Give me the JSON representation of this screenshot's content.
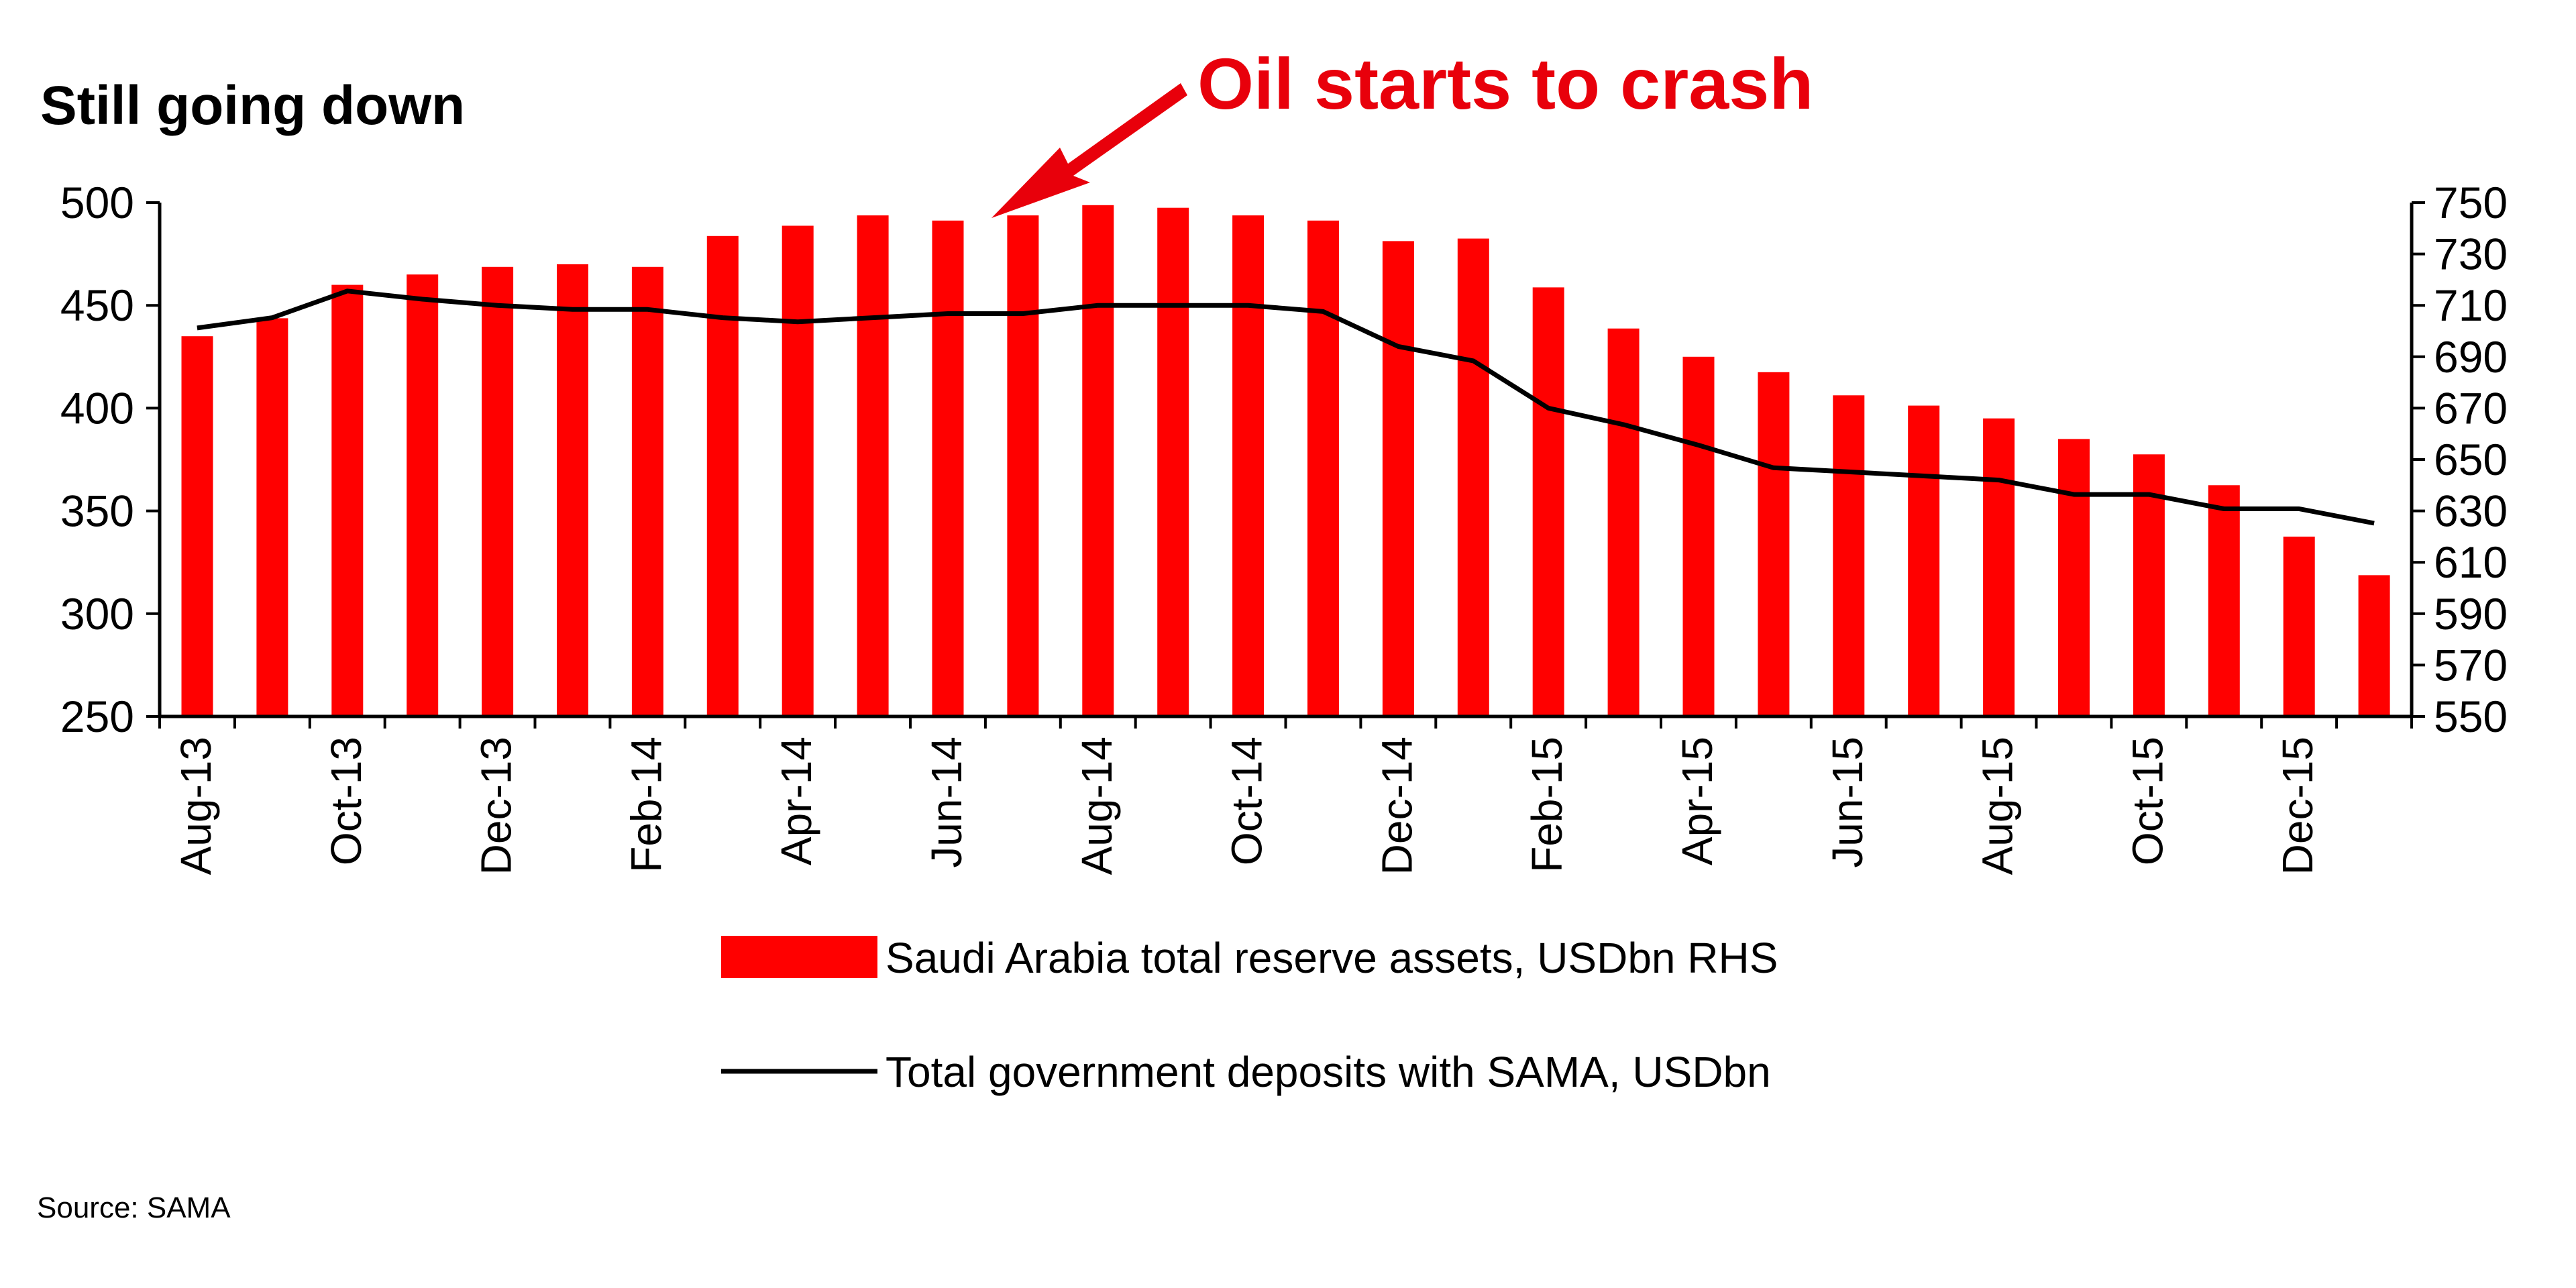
{
  "title": "Still going down",
  "annotation": "Oil starts to crash",
  "source": "Source: SAMA",
  "colors": {
    "bar": "#ff0000",
    "line": "#000000",
    "annotation": "#e8000b"
  },
  "chart_data": {
    "type": "bar+line",
    "x": [
      "Aug-13",
      "Sep-13",
      "Oct-13",
      "Nov-13",
      "Dec-13",
      "Jan-14",
      "Feb-14",
      "Mar-14",
      "Apr-14",
      "May-14",
      "Jun-14",
      "Jul-14",
      "Aug-14",
      "Sep-14",
      "Oct-14",
      "Nov-14",
      "Dec-14",
      "Jan-15",
      "Feb-15",
      "Mar-15",
      "Apr-15",
      "May-15",
      "Jun-15",
      "Jul-15",
      "Aug-15",
      "Sep-15",
      "Oct-15",
      "Nov-15",
      "Dec-15",
      "Jan-16"
    ],
    "x_tick_labels": [
      "Aug-13",
      "Oct-13",
      "Dec-13",
      "Feb-14",
      "Apr-14",
      "Jun-14",
      "Aug-14",
      "Oct-14",
      "Dec-14",
      "Feb-15",
      "Apr-15",
      "Jun-15",
      "Aug-15",
      "Oct-15",
      "Dec-15"
    ],
    "series": [
      {
        "name": "Saudi Arabia total reserve assets, USDbn RHS",
        "type": "bar",
        "axis": "right",
        "values": [
          698,
          705,
          718,
          722,
          725,
          726,
          725,
          737,
          741,
          745,
          743,
          745,
          749,
          748,
          745,
          743,
          735,
          736,
          717,
          701,
          690,
          684,
          675,
          671,
          666,
          658,
          652,
          640,
          620,
          605
        ]
      },
      {
        "name": "Total government deposits with SAMA, USDbn",
        "type": "line",
        "axis": "left",
        "values": [
          439,
          444,
          457,
          453,
          450,
          448,
          448,
          444,
          442,
          444,
          446,
          446,
          450,
          450,
          450,
          447,
          430,
          423,
          400,
          392,
          382,
          371,
          369,
          367,
          365,
          358,
          358,
          351,
          351,
          344
        ]
      }
    ],
    "left_axis": {
      "ylim": [
        250,
        500
      ],
      "ticks": [
        500,
        450,
        400,
        350,
        300,
        250
      ]
    },
    "right_axis": {
      "ylim": [
        550,
        750
      ],
      "ticks": [
        750,
        730,
        710,
        690,
        670,
        650,
        630,
        610,
        590,
        570,
        550
      ]
    },
    "legend_position": "bottom",
    "grid": false
  }
}
